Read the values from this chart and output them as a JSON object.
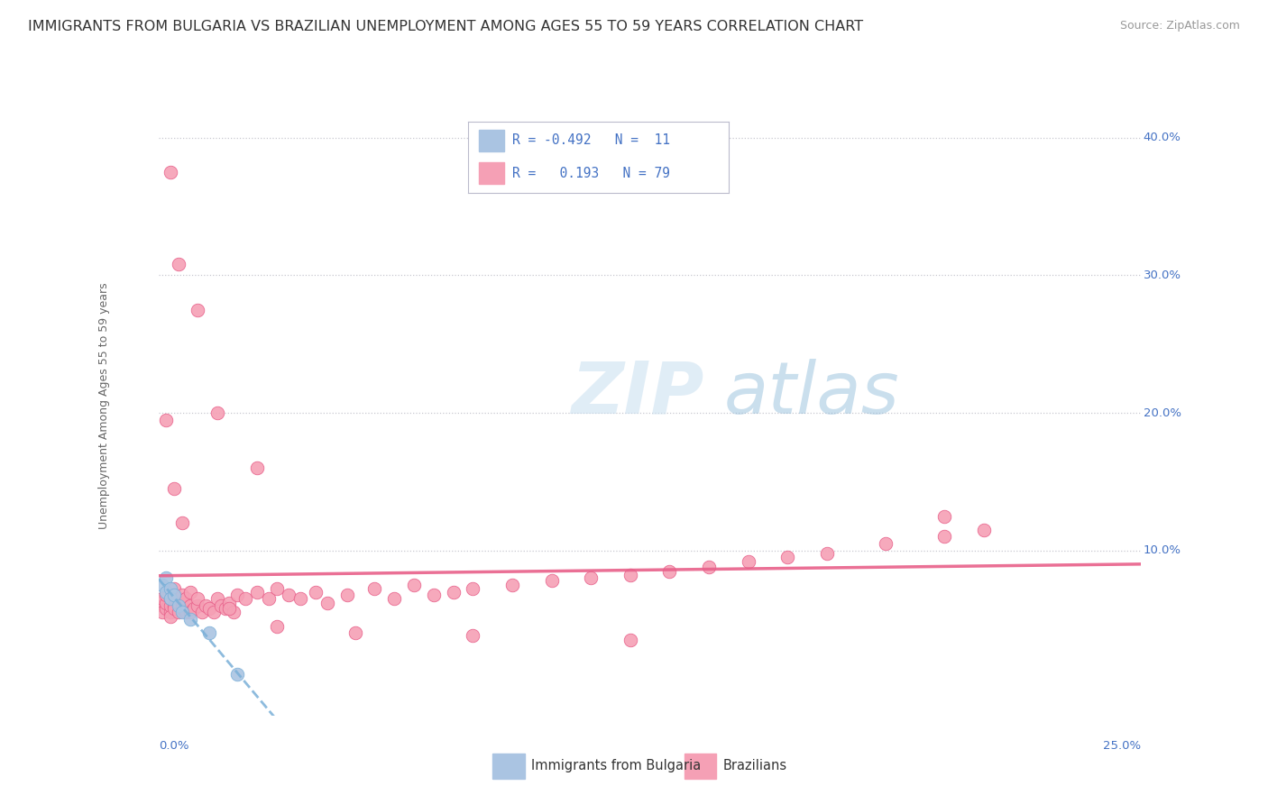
{
  "title": "IMMIGRANTS FROM BULGARIA VS BRAZILIAN UNEMPLOYMENT AMONG AGES 55 TO 59 YEARS CORRELATION CHART",
  "source": "Source: ZipAtlas.com",
  "ylabel": "Unemployment Among Ages 55 to 59 years",
  "xlim": [
    0.0,
    0.25
  ],
  "ylim": [
    -0.02,
    0.43
  ],
  "legend_text_r1": "R = -0.492  N =  11",
  "legend_text_r2": "R =   0.193  N = 79",
  "bulgaria_color": "#aac4e2",
  "brazil_color": "#f5a0b5",
  "trend_blue_color": "#7ab0d8",
  "trend_pink_color": "#e8608a",
  "background_color": "#ffffff",
  "grid_color": "#c8c8d0",
  "axis_label_color": "#4472c4",
  "title_color": "#333333",
  "source_color": "#999999",
  "ylabel_color": "#666666",
  "watermark_color": "#d0e8f5",
  "title_fontsize": 11.5,
  "source_fontsize": 9,
  "axis_label_fontsize": 9,
  "tick_fontsize": 9.5,
  "legend_fontsize": 10.5,
  "ylabel_fontsize": 9,
  "bulgaria_x": [
    0.001,
    0.002,
    0.002,
    0.003,
    0.003,
    0.004,
    0.005,
    0.006,
    0.008,
    0.013,
    0.02
  ],
  "bulgaria_y": [
    0.075,
    0.08,
    0.07,
    0.072,
    0.065,
    0.068,
    0.06,
    0.055,
    0.05,
    0.04,
    0.01
  ],
  "brazil_x": [
    0.001,
    0.001,
    0.001,
    0.002,
    0.002,
    0.002,
    0.002,
    0.003,
    0.003,
    0.003,
    0.003,
    0.004,
    0.004,
    0.004,
    0.005,
    0.005,
    0.005,
    0.006,
    0.006,
    0.006,
    0.007,
    0.007,
    0.008,
    0.008,
    0.008,
    0.009,
    0.01,
    0.01,
    0.011,
    0.012,
    0.013,
    0.014,
    0.015,
    0.016,
    0.017,
    0.018,
    0.019,
    0.02,
    0.022,
    0.025,
    0.028,
    0.03,
    0.033,
    0.036,
    0.04,
    0.043,
    0.048,
    0.055,
    0.06,
    0.065,
    0.07,
    0.075,
    0.08,
    0.09,
    0.1,
    0.11,
    0.12,
    0.13,
    0.14,
    0.15,
    0.16,
    0.17,
    0.185,
    0.2,
    0.21,
    0.003,
    0.005,
    0.01,
    0.015,
    0.025,
    0.002,
    0.004,
    0.006,
    0.018,
    0.03,
    0.05,
    0.08,
    0.12,
    0.2
  ],
  "brazil_y": [
    0.06,
    0.055,
    0.065,
    0.058,
    0.062,
    0.07,
    0.068,
    0.055,
    0.06,
    0.052,
    0.065,
    0.06,
    0.058,
    0.072,
    0.055,
    0.065,
    0.062,
    0.06,
    0.058,
    0.068,
    0.055,
    0.065,
    0.06,
    0.055,
    0.07,
    0.058,
    0.06,
    0.065,
    0.055,
    0.06,
    0.058,
    0.055,
    0.065,
    0.06,
    0.058,
    0.062,
    0.055,
    0.068,
    0.065,
    0.07,
    0.065,
    0.072,
    0.068,
    0.065,
    0.07,
    0.062,
    0.068,
    0.072,
    0.065,
    0.075,
    0.068,
    0.07,
    0.072,
    0.075,
    0.078,
    0.08,
    0.082,
    0.085,
    0.088,
    0.092,
    0.095,
    0.098,
    0.105,
    0.11,
    0.115,
    0.375,
    0.308,
    0.275,
    0.2,
    0.16,
    0.195,
    0.145,
    0.12,
    0.058,
    0.045,
    0.04,
    0.038,
    0.035,
    0.125
  ]
}
